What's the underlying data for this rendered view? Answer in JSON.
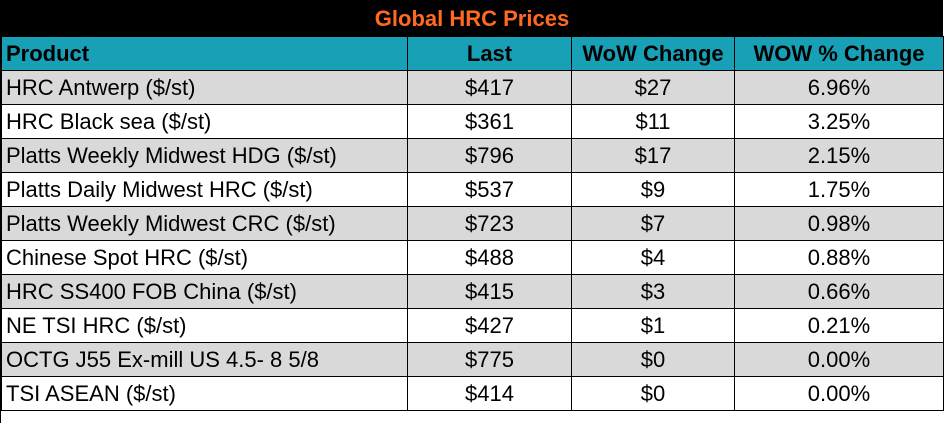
{
  "title": "Global HRC Prices",
  "columns": [
    "Product",
    "Last",
    "WoW Change",
    "WOW % Change"
  ],
  "rows": [
    {
      "product": "HRC Antwerp ($/st)",
      "last": "$417",
      "wow": "$27",
      "pct": "6.96%"
    },
    {
      "product": "HRC Black sea ($/st)",
      "last": "$361",
      "wow": "$11",
      "pct": "3.25%"
    },
    {
      "product": "Platts Weekly Midwest HDG ($/st)",
      "last": "$796",
      "wow": "$17",
      "pct": "2.15%"
    },
    {
      "product": "Platts Daily Midwest HRC ($/st)",
      "last": "$537",
      "wow": "$9",
      "pct": "1.75%"
    },
    {
      "product": "Platts Weekly Midwest CRC ($/st)",
      "last": "$723",
      "wow": "$7",
      "pct": "0.98%"
    },
    {
      "product": "Chinese Spot HRC ($/st)",
      "last": "$488",
      "wow": "$4",
      "pct": "0.88%"
    },
    {
      "product": "HRC SS400 FOB China ($/st)",
      "last": "$415",
      "wow": "$3",
      "pct": "0.66%"
    },
    {
      "product": "NE TSI HRC ($/st)",
      "last": "$427",
      "wow": "$1",
      "pct": "0.21%"
    },
    {
      "product": "OCTG J55 Ex-mill US 4.5- 8 5/8",
      "last": "$775",
      "wow": "$0",
      "pct": "0.00%"
    },
    {
      "product": "TSI ASEAN ($/st)",
      "last": "$414",
      "wow": "$0",
      "pct": "0.00%"
    }
  ],
  "colors": {
    "title_bg": "#000000",
    "title_text": "#ff6a1f",
    "header_bg": "#17a0b6",
    "row_alt": "#d9d9d9",
    "row": "#ffffff"
  }
}
